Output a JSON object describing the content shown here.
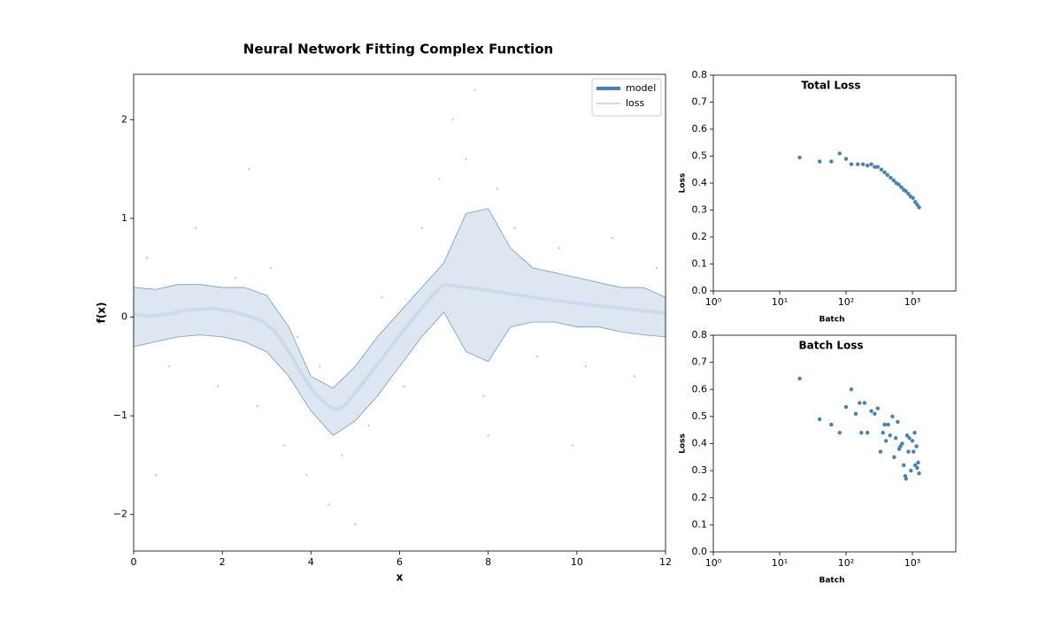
{
  "chart_data": [
    {
      "type": "line",
      "title": "Neural Network Fitting Complex Function",
      "x_label": "x",
      "y_label": "f(x)",
      "xlim": [
        0,
        12
      ],
      "ylim": [
        -2.37,
        2.46
      ],
      "xticks": [
        0,
        2,
        4,
        6,
        8,
        10,
        12
      ],
      "yticks": [
        {
          "value": -2,
          "label": "−2"
        },
        {
          "value": -1,
          "label": "−1"
        },
        0,
        1,
        2
      ],
      "legend": "upper right",
      "points": {
        "color": "#c8c8c8",
        "x": [
          0.3,
          0.8,
          1.4,
          1.9,
          2.3,
          2.8,
          3.1,
          3.4,
          3.7,
          3.9,
          4.2,
          4.4,
          4.7,
          4.9,
          5.3,
          5.6,
          6.1,
          6.5,
          6.9,
          7.2,
          7.5,
          7.7,
          7.9,
          8.2,
          8.6,
          9.1,
          9.6,
          10.2,
          10.8,
          11.3,
          11.8,
          0.5,
          2.6,
          5.0,
          8.0,
          9.9
        ],
        "y": [
          0.6,
          -0.5,
          0.9,
          -0.7,
          0.4,
          -0.9,
          0.5,
          -1.3,
          -0.2,
          -1.6,
          -0.5,
          -1.9,
          -1.4,
          -0.6,
          -1.1,
          0.2,
          -0.7,
          0.9,
          1.4,
          2.0,
          1.6,
          2.3,
          -0.8,
          1.3,
          0.9,
          -0.4,
          0.7,
          -0.5,
          0.8,
          -0.6,
          0.5,
          -1.6,
          1.5,
          -2.1,
          -1.2,
          -1.3
        ]
      },
      "series": [
        {
          "name": "model",
          "color": "#4682b4",
          "x": [
            0,
            0.3,
            0.6,
            0.9,
            1.2,
            1.8,
            2.2,
            2.6,
            2.9,
            3.2,
            3.5,
            3.8,
            4.1,
            4.4,
            4.6,
            4.8,
            5.2,
            5.6,
            6.0,
            6.4,
            6.8,
            7.0,
            8,
            9,
            10,
            11,
            12
          ],
          "values": [
            0.03,
            0.01,
            0.02,
            0.04,
            0.07,
            0.09,
            0.06,
            0.01,
            -0.04,
            -0.15,
            -0.35,
            -0.58,
            -0.78,
            -0.9,
            -0.94,
            -0.88,
            -0.65,
            -0.42,
            -0.19,
            0.04,
            0.25,
            0.33,
            0.27,
            0.2,
            0.14,
            0.09,
            0.04
          ]
        },
        {
          "name": "loss",
          "color": "#6f9cc4",
          "fill": "#dae4ef",
          "x": [
            0,
            0.5,
            1,
            1.5,
            2,
            2.5,
            3,
            3.5,
            4,
            4.5,
            5,
            5.5,
            6,
            6.5,
            7,
            7.5,
            8,
            8.5,
            9,
            9.5,
            10,
            10.5,
            11,
            11.5,
            12
          ],
          "upper": [
            0.3,
            0.28,
            0.33,
            0.33,
            0.3,
            0.3,
            0.22,
            -0.1,
            -0.6,
            -0.72,
            -0.5,
            -0.2,
            0.05,
            0.3,
            0.55,
            1.05,
            1.1,
            0.7,
            0.5,
            0.45,
            0.4,
            0.35,
            0.3,
            0.3,
            0.2
          ],
          "lower": [
            -0.3,
            -0.25,
            -0.2,
            -0.18,
            -0.2,
            -0.25,
            -0.35,
            -0.6,
            -0.95,
            -1.2,
            -1.05,
            -0.8,
            -0.5,
            -0.2,
            0.05,
            -0.35,
            -0.45,
            -0.1,
            -0.05,
            -0.05,
            -0.1,
            -0.1,
            -0.15,
            -0.18,
            -0.2
          ]
        }
      ]
    },
    {
      "type": "scatter",
      "title": "Total Loss",
      "x_label": "Batch",
      "y_label": "Loss",
      "xscale": "log",
      "color": "#4682b4",
      "xlim": [
        1,
        4500
      ],
      "ylim": [
        0,
        0.8
      ],
      "xticks": [
        {
          "value": 1,
          "label": "10⁰"
        },
        {
          "value": 10,
          "label": "10¹"
        },
        {
          "value": 100,
          "label": "10²"
        },
        {
          "value": 1000,
          "label": "10³"
        }
      ],
      "yticks": [
        {
          "value": 0,
          "label": "0.0"
        },
        0.1,
        0.2,
        0.3,
        0.4,
        0.5,
        0.6,
        0.7,
        0.8
      ],
      "x": [
        20,
        40,
        60,
        80,
        100,
        120,
        150,
        180,
        210,
        240,
        270,
        300,
        340,
        380,
        420,
        470,
        520,
        570,
        620,
        680,
        740,
        800,
        870,
        940,
        1020,
        1100,
        1180,
        1260
      ],
      "values": [
        0.495,
        0.48,
        0.48,
        0.51,
        0.49,
        0.47,
        0.47,
        0.47,
        0.465,
        0.47,
        0.46,
        0.46,
        0.45,
        0.44,
        0.43,
        0.42,
        0.41,
        0.4,
        0.395,
        0.385,
        0.375,
        0.37,
        0.36,
        0.35,
        0.345,
        0.33,
        0.32,
        0.31
      ]
    },
    {
      "type": "scatter",
      "title": "Batch Loss",
      "x_label": "Batch",
      "y_label": "Loss",
      "xscale": "log",
      "color": "#4682b4",
      "xlim": [
        1,
        4500
      ],
      "ylim": [
        0,
        0.8
      ],
      "xticks": [
        {
          "value": 1,
          "label": "10⁰"
        },
        {
          "value": 10,
          "label": "10¹"
        },
        {
          "value": 100,
          "label": "10²"
        },
        {
          "value": 1000,
          "label": "10³"
        }
      ],
      "yticks": [
        {
          "value": 0,
          "label": "0.0"
        },
        0.1,
        0.2,
        0.3,
        0.4,
        0.5,
        0.6,
        0.7,
        0.8
      ],
      "x": [
        20,
        40,
        60,
        80,
        100,
        120,
        140,
        160,
        170,
        190,
        210,
        240,
        270,
        300,
        330,
        360,
        380,
        400,
        430,
        460,
        500,
        530,
        560,
        600,
        630,
        660,
        700,
        740,
        780,
        800,
        830,
        870,
        900,
        950,
        1000,
        1040,
        1080,
        1100,
        1150,
        1180,
        1220,
        1260
      ],
      "values": [
        0.64,
        0.49,
        0.47,
        0.44,
        0.535,
        0.6,
        0.51,
        0.55,
        0.44,
        0.55,
        0.44,
        0.52,
        0.51,
        0.53,
        0.37,
        0.44,
        0.47,
        0.41,
        0.47,
        0.43,
        0.5,
        0.35,
        0.42,
        0.48,
        0.38,
        0.39,
        0.4,
        0.32,
        0.28,
        0.27,
        0.43,
        0.37,
        0.42,
        0.3,
        0.41,
        0.37,
        0.44,
        0.32,
        0.39,
        0.31,
        0.33,
        0.29
      ]
    }
  ]
}
